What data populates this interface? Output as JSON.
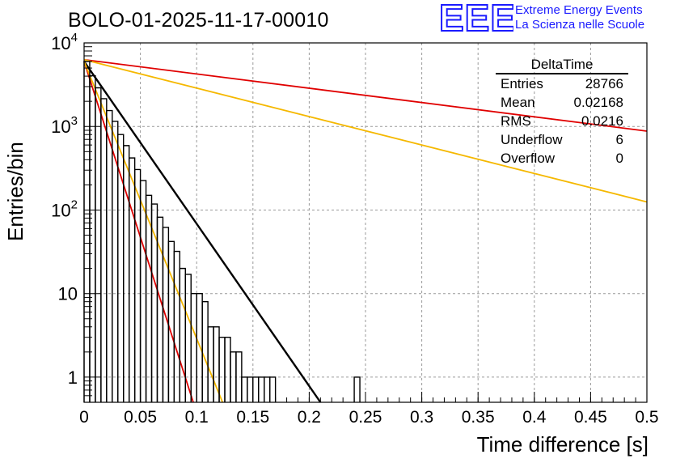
{
  "run_title": "BOLO-01-2025-11-17-00010",
  "logo": {
    "mark": "EEE",
    "line1": "Extreme Energy Events",
    "line2": "La Scienza nelle Scuole",
    "color": "#1a1aff"
  },
  "stats_box": {
    "name": "DeltaTime",
    "rows": [
      {
        "label": "Entries",
        "value": "28766"
      },
      {
        "label": "Mean",
        "value": "0.02168"
      },
      {
        "label": "RMS",
        "value": "0.0216"
      },
      {
        "label": "Underflow",
        "value": "6"
      },
      {
        "label": "Overflow",
        "value": "0"
      }
    ]
  },
  "chart_data": {
    "type": "line",
    "title": "BOLO-01-2025-11-17-00010",
    "xlabel": "Time difference [s]",
    "ylabel": "Entries/bin",
    "xlim": [
      0,
      0.5
    ],
    "ylim": [
      0.5,
      10000
    ],
    "yscale": "log",
    "grid": true,
    "xticks": [
      "0",
      "0.05",
      "0.1",
      "0.15",
      "0.2",
      "0.25",
      "0.3",
      "0.35",
      "0.4",
      "0.45",
      "0.5"
    ],
    "ytick_labels": [
      {
        "value": 1,
        "label": "1"
      },
      {
        "value": 10,
        "label": "10"
      },
      {
        "value": 100,
        "base": "10",
        "exp": "2"
      },
      {
        "value": 1000,
        "base": "10",
        "exp": "3"
      },
      {
        "value": 10000,
        "base": "10",
        "exp": "4"
      }
    ],
    "histogram": {
      "name": "DeltaTime",
      "color": "#000000",
      "bin_width": 0.005,
      "bins": [
        {
          "x": 0.0,
          "y": 6000
        },
        {
          "x": 0.005,
          "y": 4050
        },
        {
          "x": 0.01,
          "y": 2900
        },
        {
          "x": 0.015,
          "y": 2150
        },
        {
          "x": 0.02,
          "y": 1550
        },
        {
          "x": 0.025,
          "y": 1150
        },
        {
          "x": 0.03,
          "y": 800
        },
        {
          "x": 0.035,
          "y": 590
        },
        {
          "x": 0.04,
          "y": 420
        },
        {
          "x": 0.045,
          "y": 305
        },
        {
          "x": 0.05,
          "y": 225
        },
        {
          "x": 0.055,
          "y": 150
        },
        {
          "x": 0.06,
          "y": 118
        },
        {
          "x": 0.065,
          "y": 82
        },
        {
          "x": 0.07,
          "y": 62
        },
        {
          "x": 0.075,
          "y": 42
        },
        {
          "x": 0.08,
          "y": 32
        },
        {
          "x": 0.085,
          "y": 20
        },
        {
          "x": 0.09,
          "y": 17
        },
        {
          "x": 0.095,
          "y": 10
        },
        {
          "x": 0.1,
          "y": 10
        },
        {
          "x": 0.105,
          "y": 8
        },
        {
          "x": 0.11,
          "y": 4
        },
        {
          "x": 0.115,
          "y": 4
        },
        {
          "x": 0.12,
          "y": 3
        },
        {
          "x": 0.125,
          "y": 3
        },
        {
          "x": 0.13,
          "y": 2
        },
        {
          "x": 0.135,
          "y": 2
        },
        {
          "x": 0.14,
          "y": 1
        },
        {
          "x": 0.145,
          "y": 1
        },
        {
          "x": 0.15,
          "y": 1
        },
        {
          "x": 0.155,
          "y": 1
        },
        {
          "x": 0.16,
          "y": 1
        },
        {
          "x": 0.165,
          "y": 1
        },
        {
          "x": 0.24,
          "y": 1
        }
      ]
    },
    "series": [
      {
        "name": "fit",
        "color": "#000000",
        "points": [
          [
            0,
            6000
          ],
          [
            0.21,
            0.5
          ]
        ]
      },
      {
        "name": "red-steep",
        "color": "#e00000",
        "points": [
          [
            0,
            6000
          ],
          [
            0.097,
            0.5
          ]
        ]
      },
      {
        "name": "orange-steep",
        "color": "#f5b800",
        "points": [
          [
            0,
            6000
          ],
          [
            0.123,
            0.5
          ]
        ]
      },
      {
        "name": "red-slow",
        "color": "#e00000",
        "points": [
          [
            0,
            6300
          ],
          [
            0.5,
            880
          ]
        ]
      },
      {
        "name": "orange-slow",
        "color": "#f5b800",
        "points": [
          [
            0,
            6300
          ],
          [
            0.5,
            125
          ]
        ]
      }
    ]
  }
}
